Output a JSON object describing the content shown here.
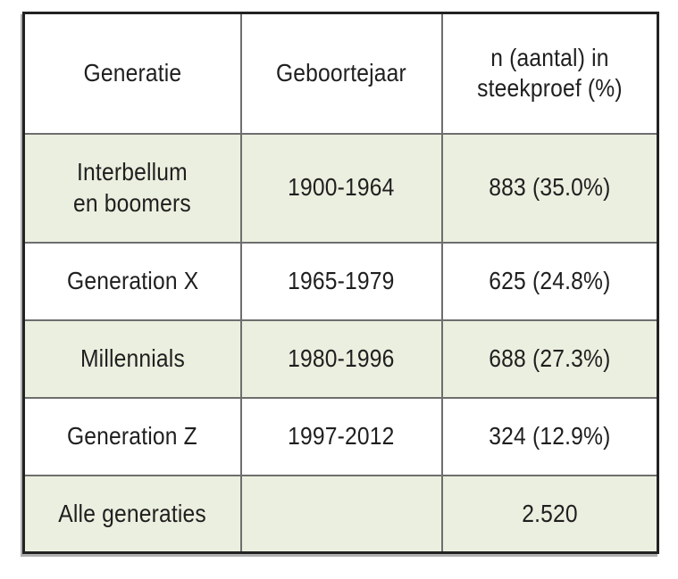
{
  "chart_data": {
    "type": "table",
    "title": "",
    "columns": [
      "Generatie",
      "Geboortejaar",
      "n (aantal) in\nsteekproef (%)"
    ],
    "rows": [
      {
        "cells": [
          "Interbellum\nen boomers",
          "1900-1964",
          "883 (35.0%)"
        ],
        "shaded": true,
        "n_value": 883,
        "pct": 35.0,
        "birth_years": "1900-1964"
      },
      {
        "cells": [
          "Generation X",
          "1965-1979",
          "625 (24.8%)"
        ],
        "shaded": false,
        "n_value": 625,
        "pct": 24.8,
        "birth_years": "1965-1979"
      },
      {
        "cells": [
          "Millennials",
          "1980-1996",
          "688 (27.3%)"
        ],
        "shaded": true,
        "n_value": 688,
        "pct": 27.3,
        "birth_years": "1980-1996"
      },
      {
        "cells": [
          "Generation Z",
          "1997-2012",
          "324 (12.9%)"
        ],
        "shaded": false,
        "n_value": 324,
        "pct": 12.9,
        "birth_years": "1997-2012"
      },
      {
        "cells": [
          "Alle generaties",
          "",
          "2.520"
        ],
        "shaded": true,
        "n_value": 2520,
        "pct": null,
        "birth_years": ""
      }
    ],
    "layout": {
      "grid": "full-borders",
      "shading_pattern": "odd body rows shaded",
      "header_background": "white"
    }
  },
  "colors": {
    "shaded_row_bg": "#ebefdf",
    "grid_line": "#6e6e6e",
    "outer_border": "#222222",
    "text": "#1f1f1f",
    "header_bg": "#ffffff"
  }
}
